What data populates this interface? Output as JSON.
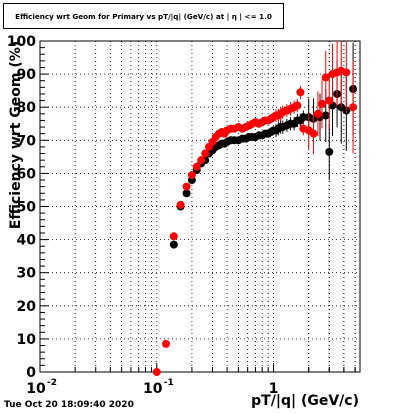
{
  "window": {
    "timestamp": "Tue Oct 20 18:09:40 2020"
  },
  "chart_data": {
    "type": "scatter",
    "title": "Efficiency wrt Geom for Primary vs pT/|q| (GeV/c) at | η | <= 1.0",
    "xlabel": "pT/|q| (GeV/c)",
    "ylabel": "Efficiency wrt Geom (%)",
    "x_scale": "log",
    "xlim": [
      0.01,
      5.5
    ],
    "ylim": [
      0,
      100
    ],
    "grid": true,
    "x_ticks": [
      {
        "value": 0.01,
        "label": "10"
      },
      {
        "value": 0.1,
        "label": "10"
      },
      {
        "value": 1,
        "label": "1"
      }
    ],
    "x_tick_exponents": [
      "-2",
      "-1",
      ""
    ],
    "y_ticks": [
      0,
      10,
      20,
      30,
      40,
      50,
      60,
      70,
      80,
      90,
      100
    ],
    "series": [
      {
        "color": "#000000",
        "x": [
          0.14,
          0.16,
          0.18,
          0.2,
          0.22,
          0.24,
          0.26,
          0.28,
          0.3,
          0.32,
          0.34,
          0.36,
          0.38,
          0.4,
          0.43,
          0.46,
          0.5,
          0.54,
          0.58,
          0.62,
          0.66,
          0.7,
          0.75,
          0.8,
          0.85,
          0.9,
          0.95,
          1.0,
          1.05,
          1.1,
          1.15,
          1.2,
          1.3,
          1.4,
          1.5,
          1.6,
          1.7,
          1.8,
          2.0,
          2.2,
          2.5,
          2.8,
          3.0,
          3.2,
          3.5,
          3.8,
          4.2,
          4.8
        ],
        "y": [
          38.5,
          50,
          54,
          58,
          61,
          63,
          64,
          66,
          67,
          68,
          68.5,
          69,
          69,
          69.5,
          70,
          70,
          70,
          70.5,
          70.5,
          71,
          71,
          71,
          71.5,
          71.5,
          72,
          72,
          72.5,
          73,
          73,
          73.5,
          74,
          74,
          74.5,
          75,
          75,
          76,
          76,
          77,
          77,
          76.5,
          77,
          77.5,
          66.5,
          80.5,
          84,
          80,
          79,
          85.5
        ]
      },
      {
        "color": "#ff0000",
        "x": [
          0.1,
          0.12,
          0.14,
          0.16,
          0.18,
          0.2,
          0.22,
          0.24,
          0.26,
          0.28,
          0.3,
          0.32,
          0.34,
          0.36,
          0.38,
          0.4,
          0.43,
          0.46,
          0.5,
          0.54,
          0.58,
          0.62,
          0.66,
          0.7,
          0.75,
          0.8,
          0.85,
          0.9,
          0.95,
          1.0,
          1.05,
          1.1,
          1.15,
          1.2,
          1.3,
          1.4,
          1.5,
          1.6,
          1.7,
          1.8,
          2.0,
          2.2,
          2.4,
          2.6,
          2.8,
          3.0,
          3.2,
          3.5,
          3.8,
          4.2,
          4.8
        ],
        "y": [
          0,
          8.5,
          41,
          50.5,
          56,
          59.5,
          62,
          64,
          66,
          68,
          69.5,
          71,
          72,
          72.5,
          72,
          73,
          73.5,
          73.5,
          74,
          73.5,
          74,
          74.5,
          75,
          75.5,
          75,
          75.5,
          76,
          76,
          76.5,
          77,
          77.5,
          77.5,
          78,
          78.5,
          79,
          79.5,
          80,
          80.5,
          84.5,
          73.5,
          73,
          72,
          78,
          81,
          89,
          82,
          90,
          90.5,
          91,
          90.5,
          80
        ]
      }
    ]
  }
}
